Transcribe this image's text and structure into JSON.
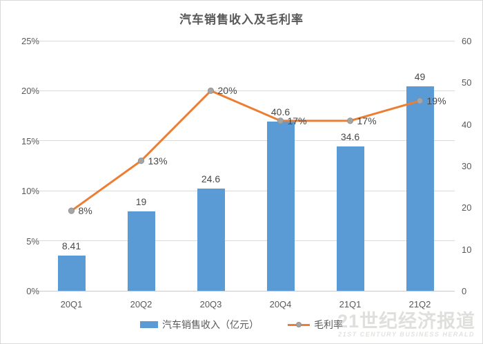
{
  "chart_data": {
    "type": "combo",
    "title": "汽车销售收入及毛利率",
    "categories": [
      "20Q1",
      "20Q2",
      "20Q3",
      "20Q4",
      "21Q1",
      "21Q2"
    ],
    "series": [
      {
        "name": "汽车销售收入（亿元）",
        "type": "bar",
        "axis": "right",
        "values": [
          8.41,
          19,
          24.6,
          40.6,
          34.6,
          49
        ],
        "labels": [
          "8.41",
          "19",
          "24.6",
          "40.6",
          "34.6",
          "49"
        ],
        "color": "#5b9bd5"
      },
      {
        "name": "毛利率",
        "type": "line",
        "axis": "left",
        "values": [
          8,
          13,
          20,
          17,
          17,
          19
        ],
        "labels": [
          "8%",
          "13%",
          "20%",
          "17%",
          "17%",
          "19%"
        ],
        "color": "#ed7d31",
        "marker_color": "#a5a5a5"
      }
    ],
    "left_axis": {
      "min": 0,
      "max": 25,
      "ticks": [
        "0%",
        "5%",
        "10%",
        "15%",
        "20%",
        "25%"
      ]
    },
    "right_axis": {
      "min": 0,
      "max": 60,
      "ticks": [
        "0",
        "10",
        "20",
        "30",
        "40",
        "50",
        "60"
      ]
    },
    "grid": true,
    "legend_position": "bottom"
  },
  "watermark": {
    "line1": "21世纪经济报道",
    "line2": "21ST CENTURY BUSINESS HERALD"
  }
}
